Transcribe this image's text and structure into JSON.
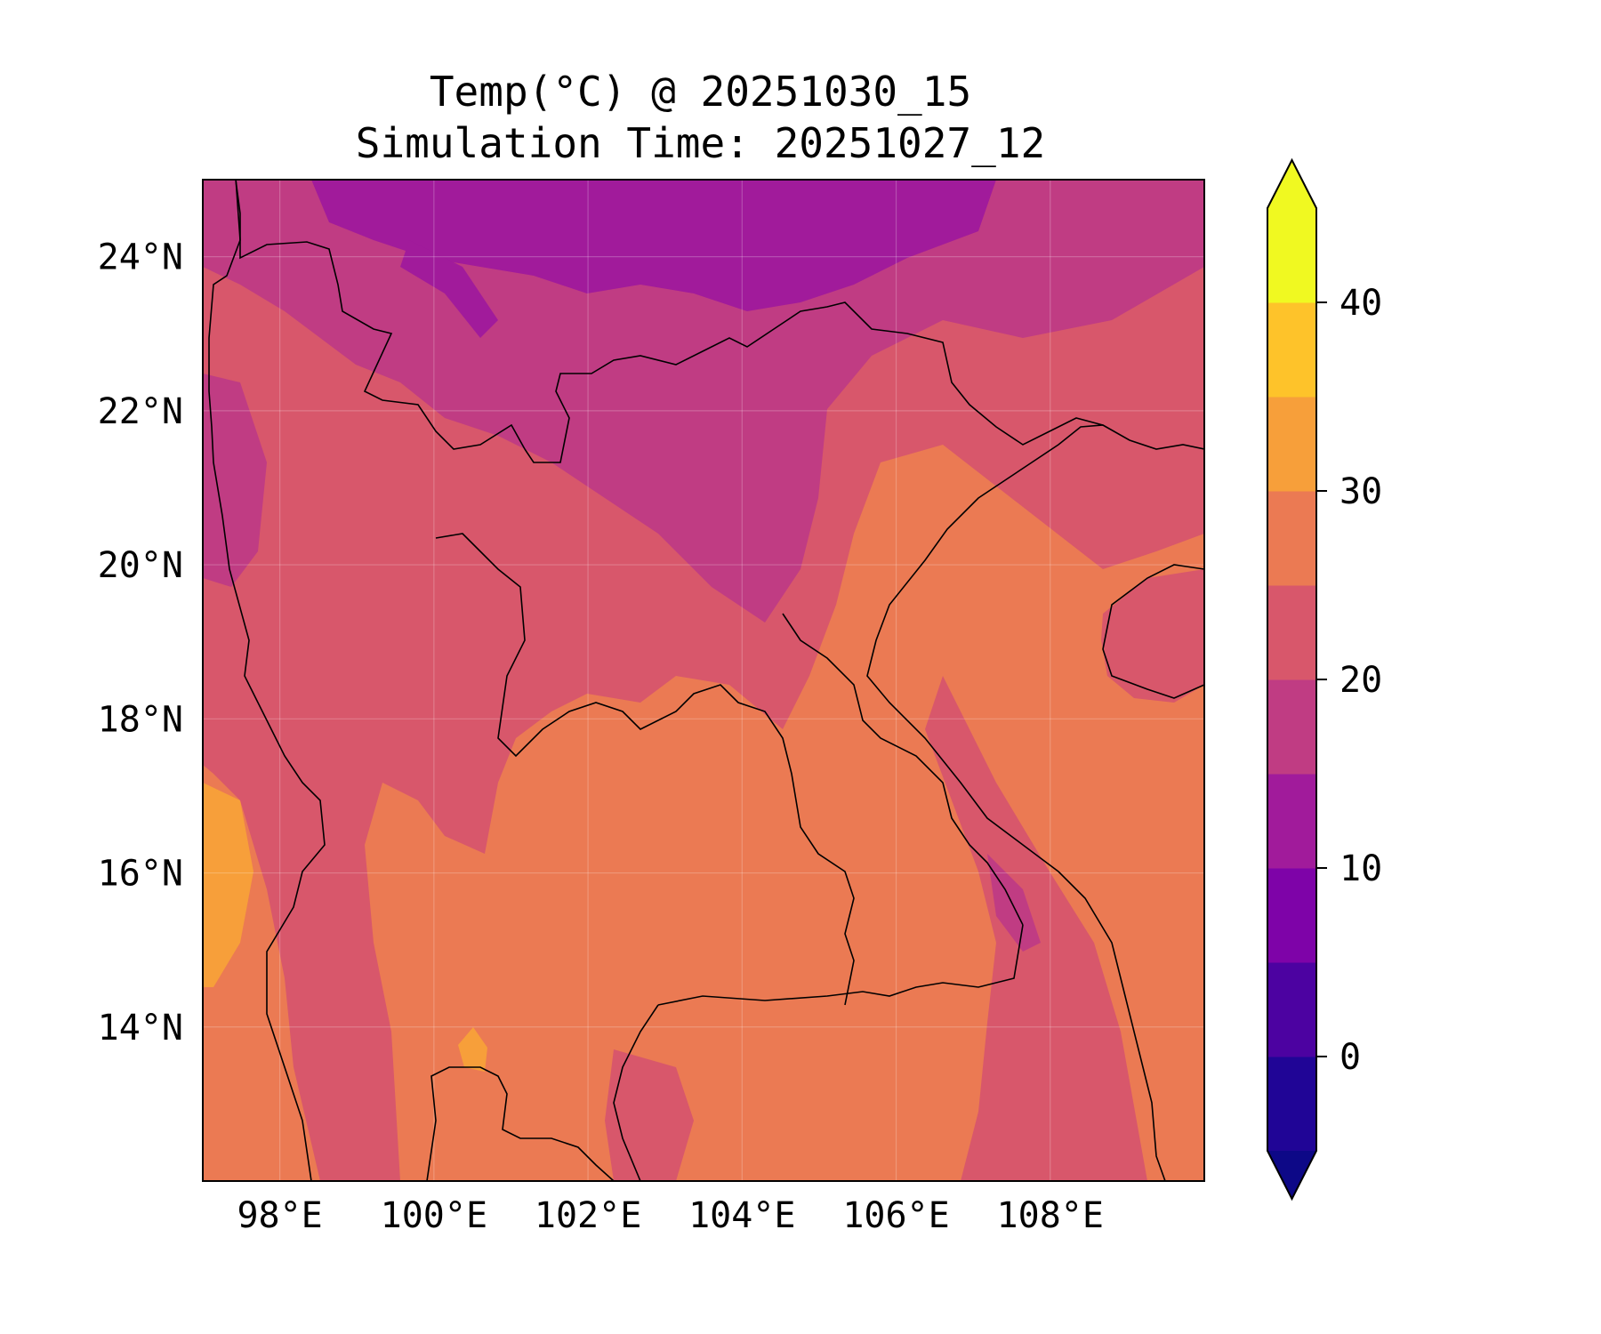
{
  "title": {
    "line1": "Temp(°C) @ 20251030_15",
    "line2": "Simulation Time: 20251027_12"
  },
  "map": {
    "lon_range": [
      97.0,
      110.0
    ],
    "lat_range": [
      12.0,
      25.0
    ],
    "x_ticks": [
      {
        "value": 98,
        "label": "98°E"
      },
      {
        "value": 100,
        "label": "100°E"
      },
      {
        "value": 102,
        "label": "102°E"
      },
      {
        "value": 104,
        "label": "104°E"
      },
      {
        "value": 106,
        "label": "106°E"
      },
      {
        "value": 108,
        "label": "108°E"
      }
    ],
    "y_ticks": [
      {
        "value": 14,
        "label": "14°N"
      },
      {
        "value": 16,
        "label": "16°N"
      },
      {
        "value": 18,
        "label": "18°N"
      },
      {
        "value": 20,
        "label": "20°N"
      },
      {
        "value": 22,
        "label": "22°N"
      },
      {
        "value": 24,
        "label": "24°N"
      }
    ],
    "gridlines": true
  },
  "colorbar": {
    "range": [
      -5,
      45
    ],
    "extend": "both",
    "levels": [
      -5,
      0,
      5,
      10,
      15,
      20,
      25,
      30,
      35,
      40,
      45
    ],
    "colors": [
      "#200596",
      "#4c02a1",
      "#7e03a8",
      "#a11b9b",
      "#c03c83",
      "#d8576b",
      "#eb7a53",
      "#f79f3a",
      "#fec32a",
      "#f0f921"
    ],
    "under_color": "#0d0887",
    "over_color": "#f0f921",
    "ticks": [
      {
        "value": 0,
        "label": "0"
      },
      {
        "value": 10,
        "label": "10"
      },
      {
        "value": 20,
        "label": "20"
      },
      {
        "value": 30,
        "label": "30"
      },
      {
        "value": 40,
        "label": "40"
      }
    ]
  }
}
